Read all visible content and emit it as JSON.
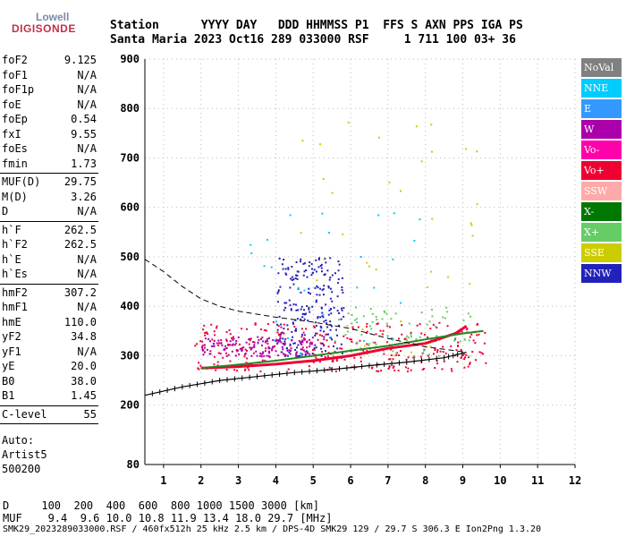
{
  "logo": {
    "line1": "Lowell",
    "line2": "DIGISONDE"
  },
  "header": {
    "line1": "Station      YYYY DAY   DDD HHMMSS P1  FFS S AXN PPS IGA PS",
    "line2": "Santa Maria 2023 Oct16 289 033000 RSF     1 711 100 03+ 36"
  },
  "params": [
    {
      "name": "foF2",
      "value": "9.125"
    },
    {
      "name": "foF1",
      "value": "N/A"
    },
    {
      "name": "foF1p",
      "value": "N/A"
    },
    {
      "name": "foE",
      "value": "N/A"
    },
    {
      "name": "foEp",
      "value": "0.54"
    },
    {
      "name": "fxI",
      "value": "9.55"
    },
    {
      "name": "foEs",
      "value": "N/A"
    },
    {
      "name": "fmin",
      "value": "1.73"
    },
    {
      "name": "MUF(D)",
      "value": "29.75"
    },
    {
      "name": "M(D)",
      "value": "3.26"
    },
    {
      "name": "D",
      "value": "N/A"
    },
    {
      "name": "h`F",
      "value": "262.5"
    },
    {
      "name": "h`F2",
      "value": "262.5"
    },
    {
      "name": "h`E",
      "value": "N/A"
    },
    {
      "name": "h`Es",
      "value": "N/A"
    },
    {
      "name": "hmF2",
      "value": "307.2"
    },
    {
      "name": "hmF1",
      "value": "N/A"
    },
    {
      "name": "hmE",
      "value": "110.0"
    },
    {
      "name": "yF2",
      "value": "34.8"
    },
    {
      "name": "yF1",
      "value": "N/A"
    },
    {
      "name": "yE",
      "value": "20.0"
    },
    {
      "name": "B0",
      "value": "38.0"
    },
    {
      "name": "B1",
      "value": "1.45"
    },
    {
      "name": "C-level",
      "value": "55"
    }
  ],
  "auto": {
    "line1": "Auto:",
    "line2": "Artist5",
    "line3": "500200"
  },
  "footer": {
    "d_row": "D     100  200  400  600  800 1000 1500 3000 [km]",
    "muf_row": "MUF    9.4  9.6 10.0 10.8 11.9 13.4 18.0 29.7 [MHz]",
    "status": "SMK29_2023289033000.RSF / 460fx512h 25 kHz 2.5 km / DPS-4D SMK29 129 / 29.7 S 306.3 E Ion2Png 1.3.20"
  },
  "legend": [
    {
      "label": "NoVal",
      "color": "#808080"
    },
    {
      "label": "NNE",
      "color": "#00ccff"
    },
    {
      "label": "E",
      "color": "#3399ff"
    },
    {
      "label": "W",
      "color": "#aa00aa"
    },
    {
      "label": "Vo-",
      "color": "#ff00aa"
    },
    {
      "label": "Vo+",
      "color": "#ee0033"
    },
    {
      "label": "SSW",
      "color": "#ffaaaa"
    },
    {
      "label": "X-",
      "color": "#007700"
    },
    {
      "label": "X+",
      "color": "#66cc66"
    },
    {
      "label": "SSE",
      "color": "#cccc00"
    },
    {
      "label": "NNW",
      "color": "#2222bb"
    }
  ],
  "chart_data": {
    "type": "scatter",
    "title": "",
    "xlabel": "",
    "ylabel": "",
    "xlim": [
      0.5,
      12
    ],
    "ylim": [
      80,
      900
    ],
    "x_ticks": [
      1,
      2,
      3,
      4,
      5,
      6,
      7,
      8,
      9,
      10,
      11,
      12
    ],
    "y_ticks": [
      80,
      200,
      300,
      400,
      500,
      600,
      700,
      800,
      900
    ],
    "grid": true,
    "profile_curve": [
      {
        "x": 0.5,
        "y": 220
      },
      {
        "x": 1.5,
        "y": 237
      },
      {
        "x": 2.5,
        "y": 250
      },
      {
        "x": 3.5,
        "y": 258
      },
      {
        "x": 4.5,
        "y": 266
      },
      {
        "x": 5.5,
        "y": 272
      },
      {
        "x": 6.5,
        "y": 280
      },
      {
        "x": 7.5,
        "y": 287
      },
      {
        "x": 8.5,
        "y": 296
      },
      {
        "x": 9.1,
        "y": 307
      }
    ],
    "o_trace": [
      {
        "x": 2.0,
        "y": 275
      },
      {
        "x": 3.0,
        "y": 278
      },
      {
        "x": 4.0,
        "y": 283
      },
      {
        "x": 5.0,
        "y": 290
      },
      {
        "x": 6.0,
        "y": 300
      },
      {
        "x": 7.0,
        "y": 315
      },
      {
        "x": 8.0,
        "y": 325
      },
      {
        "x": 8.8,
        "y": 345
      },
      {
        "x": 9.1,
        "y": 360
      }
    ],
    "x_trace": [
      {
        "x": 2.0,
        "y": 275
      },
      {
        "x": 3.0,
        "y": 282
      },
      {
        "x": 4.0,
        "y": 290
      },
      {
        "x": 5.0,
        "y": 300
      },
      {
        "x": 6.0,
        "y": 310
      },
      {
        "x": 7.0,
        "y": 320
      },
      {
        "x": 8.0,
        "y": 333
      },
      {
        "x": 9.0,
        "y": 345
      },
      {
        "x": 9.55,
        "y": 350
      }
    ],
    "dashed_curve": [
      {
        "x": 0.5,
        "y": 495
      },
      {
        "x": 1.0,
        "y": 470
      },
      {
        "x": 1.5,
        "y": 440
      },
      {
        "x": 2.0,
        "y": 415
      },
      {
        "x": 2.5,
        "y": 400
      },
      {
        "x": 3.0,
        "y": 390
      },
      {
        "x": 4.0,
        "y": 378
      },
      {
        "x": 5.0,
        "y": 368
      },
      {
        "x": 6.0,
        "y": 355
      },
      {
        "x": 7.0,
        "y": 335
      },
      {
        "x": 8.0,
        "y": 318
      },
      {
        "x": 9.0,
        "y": 308
      }
    ],
    "scatter_regions": [
      {
        "color": "#2222bb",
        "x": [
          4.0,
          5.8
        ],
        "y": [
          300,
          500
        ],
        "n": 230
      },
      {
        "color": "#aa00aa",
        "x": [
          2.0,
          5.0
        ],
        "y": [
          300,
          340
        ],
        "n": 160
      },
      {
        "color": "#ee0033",
        "x": [
          1.8,
          9.6
        ],
        "y": [
          270,
          370
        ],
        "n": 320
      },
      {
        "color": "#66cc66",
        "x": [
          5.5,
          9.2
        ],
        "y": [
          300,
          400
        ],
        "n": 90
      },
      {
        "color": "#00ccff",
        "x": [
          3.0,
          8.0
        ],
        "y": [
          300,
          600
        ],
        "n": 30
      },
      {
        "color": "#cccc00",
        "x": [
          4.5,
          9.5
        ],
        "y": [
          300,
          800
        ],
        "n": 40
      }
    ]
  }
}
